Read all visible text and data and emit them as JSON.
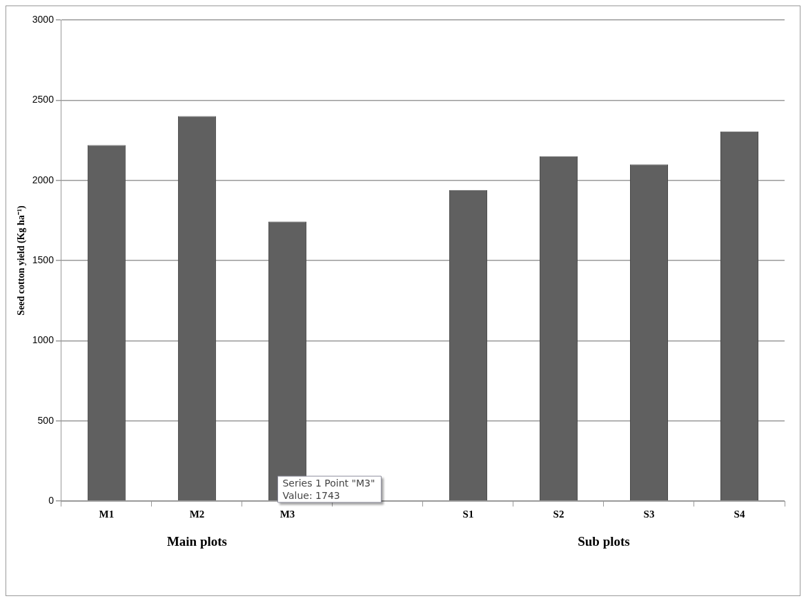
{
  "chart_data": {
    "type": "bar",
    "ylabel": "Seed cotton yield (Kg ha⁻¹)",
    "categories": [
      "M1",
      "M2",
      "M3",
      null,
      "S1",
      "S2",
      "S3",
      "S4"
    ],
    "values": [
      2220,
      2400,
      1743,
      null,
      1940,
      2150,
      2100,
      2305
    ],
    "color": "#606060",
    "ylim": [
      0,
      3000
    ],
    "yticks": [
      0,
      500,
      1000,
      1500,
      2000,
      2500,
      3000
    ],
    "grid": "y",
    "annotations": [
      "Main plots",
      "Sub plots",
      "Series 1 Point \"M3\"\nValue: 1743"
    ]
  }
}
